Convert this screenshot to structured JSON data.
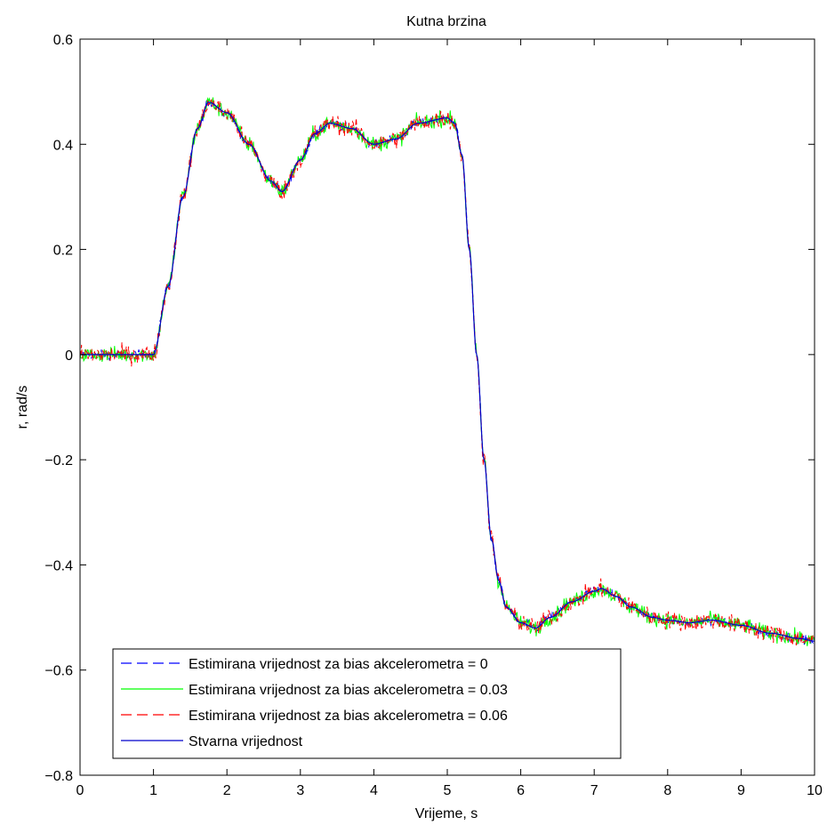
{
  "chart_data": {
    "type": "line",
    "title": "Kutna brzina",
    "xlabel": "Vrijeme, s",
    "ylabel": "r, rad/s",
    "xlim": [
      0,
      10
    ],
    "ylim": [
      -0.8,
      0.6
    ],
    "xticks": [
      "0",
      "1",
      "2",
      "3",
      "4",
      "5",
      "6",
      "7",
      "8",
      "9",
      "10"
    ],
    "yticks": [
      "0.6",
      "0.4",
      "0.2",
      "0",
      "−0.2",
      "−0.4",
      "−0.6",
      "−0.8"
    ],
    "ytick_values": [
      0.6,
      0.4,
      0.2,
      0,
      -0.2,
      -0.4,
      -0.6,
      -0.8
    ],
    "grid": false,
    "legend_position": "bottom-left",
    "x": [
      0,
      0.5,
      1.0,
      1.2,
      1.4,
      1.6,
      1.75,
      2.0,
      2.3,
      2.6,
      2.75,
      3.0,
      3.2,
      3.4,
      3.7,
      4.0,
      4.3,
      4.6,
      5.0,
      5.1,
      5.2,
      5.3,
      5.4,
      5.5,
      5.6,
      5.7,
      5.8,
      6.0,
      6.2,
      6.4,
      6.7,
      7.0,
      7.1,
      7.3,
      7.5,
      7.8,
      8.0,
      8.3,
      8.6,
      9.0,
      9.4,
      9.8,
      10.0
    ],
    "series": [
      {
        "name": "Estimirana vrijednost za bias akcelerometra = 0",
        "color": "#0000ff",
        "dash": "dashed",
        "noise": 0.008,
        "values": [
          0,
          0,
          0,
          0.13,
          0.3,
          0.43,
          0.48,
          0.46,
          0.4,
          0.33,
          0.31,
          0.37,
          0.42,
          0.44,
          0.43,
          0.4,
          0.41,
          0.44,
          0.45,
          0.44,
          0.38,
          0.2,
          0.0,
          -0.2,
          -0.35,
          -0.43,
          -0.48,
          -0.51,
          -0.52,
          -0.5,
          -0.47,
          -0.45,
          -0.445,
          -0.46,
          -0.48,
          -0.5,
          -0.505,
          -0.51,
          -0.505,
          -0.515,
          -0.53,
          -0.54,
          -0.545
        ]
      },
      {
        "name": "Estimirana vrijednost za bias akcelerometra = 0.03",
        "color": "#00ff00",
        "dash": "solid",
        "noise": 0.014,
        "values": [
          0,
          0,
          0,
          0.13,
          0.3,
          0.43,
          0.48,
          0.46,
          0.4,
          0.33,
          0.31,
          0.37,
          0.42,
          0.44,
          0.43,
          0.4,
          0.41,
          0.44,
          0.45,
          0.44,
          0.38,
          0.2,
          0.0,
          -0.2,
          -0.35,
          -0.43,
          -0.48,
          -0.51,
          -0.52,
          -0.5,
          -0.47,
          -0.45,
          -0.445,
          -0.46,
          -0.48,
          -0.5,
          -0.505,
          -0.51,
          -0.505,
          -0.515,
          -0.53,
          -0.54,
          -0.545
        ]
      },
      {
        "name": "Estimirana vrijednost za bias akcelerometra = 0.06",
        "color": "#ff0000",
        "dash": "dashed",
        "noise": 0.016,
        "values": [
          0,
          0,
          0,
          0.13,
          0.3,
          0.43,
          0.48,
          0.46,
          0.4,
          0.33,
          0.31,
          0.37,
          0.42,
          0.44,
          0.43,
          0.4,
          0.41,
          0.44,
          0.45,
          0.44,
          0.38,
          0.2,
          0.0,
          -0.2,
          -0.35,
          -0.43,
          -0.48,
          -0.51,
          -0.52,
          -0.5,
          -0.47,
          -0.45,
          -0.445,
          -0.46,
          -0.48,
          -0.5,
          -0.505,
          -0.51,
          -0.505,
          -0.515,
          -0.53,
          -0.54,
          -0.545
        ]
      },
      {
        "name": "Stvarna vrijednost",
        "color": "#0000cc",
        "dash": "solid",
        "noise": 0,
        "values": [
          0,
          0,
          0,
          0.13,
          0.3,
          0.43,
          0.48,
          0.46,
          0.4,
          0.33,
          0.31,
          0.37,
          0.42,
          0.44,
          0.43,
          0.4,
          0.41,
          0.44,
          0.45,
          0.44,
          0.38,
          0.2,
          0.0,
          -0.2,
          -0.35,
          -0.43,
          -0.48,
          -0.51,
          -0.52,
          -0.5,
          -0.47,
          -0.45,
          -0.445,
          -0.46,
          -0.48,
          -0.5,
          -0.505,
          -0.51,
          -0.505,
          -0.515,
          -0.53,
          -0.54,
          -0.545
        ]
      }
    ]
  }
}
